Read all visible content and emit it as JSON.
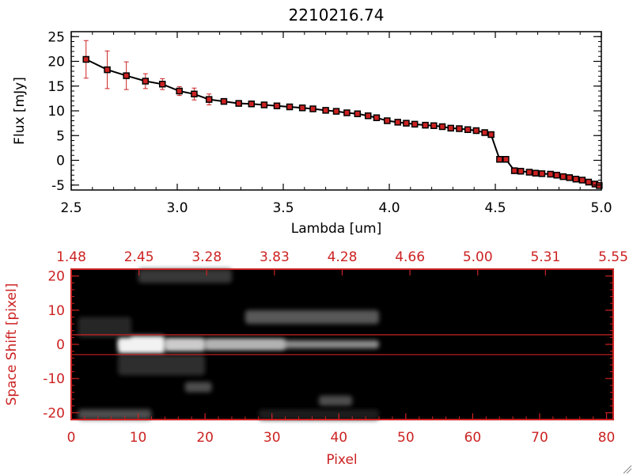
{
  "chart_data": [
    {
      "type": "line",
      "title": "2210216.74",
      "xlabel": "Lambda [um]",
      "ylabel": "Flux [mJy]",
      "xlim": [
        2.5,
        5.0
      ],
      "ylim": [
        -6,
        26
      ],
      "x_ticks": [
        "2.5",
        "3.0",
        "3.5",
        "4.0",
        "4.5",
        "5.0"
      ],
      "y_ticks": [
        "-5",
        "0",
        "5",
        "10",
        "15",
        "20",
        "25"
      ],
      "grid": false,
      "colors": {
        "line": "#000000",
        "marker": "#cc2222",
        "error": "#cc2222"
      },
      "series": [
        {
          "x": [
            2.57,
            2.67,
            2.76,
            2.85,
            2.93,
            3.01,
            3.08,
            3.15,
            3.22,
            3.29,
            3.35,
            3.41,
            3.47,
            3.53,
            3.59,
            3.64,
            3.7,
            3.75,
            3.8,
            3.85,
            3.9,
            3.94,
            3.99,
            4.04,
            4.08,
            4.12,
            4.17,
            4.21,
            4.25,
            4.29,
            4.33,
            4.37,
            4.41,
            4.45,
            4.48,
            4.52,
            4.55,
            4.59,
            4.62,
            4.66,
            4.69,
            4.72,
            4.76,
            4.79,
            4.82,
            4.85,
            4.88,
            4.91,
            4.94,
            4.97,
            4.99
          ],
          "y": [
            20.4,
            18.3,
            17.1,
            16.0,
            15.4,
            14.0,
            13.4,
            12.3,
            11.9,
            11.5,
            11.4,
            11.2,
            11.0,
            10.8,
            10.6,
            10.4,
            10.1,
            9.9,
            9.6,
            9.4,
            9.0,
            8.6,
            8.0,
            7.7,
            7.5,
            7.3,
            7.1,
            7.0,
            6.8,
            6.5,
            6.4,
            6.2,
            6.0,
            5.6,
            5.2,
            0.2,
            0.2,
            -2.1,
            -2.2,
            -2.4,
            -2.6,
            -2.7,
            -2.8,
            -3.0,
            -3.3,
            -3.5,
            -3.8,
            -4.0,
            -4.4,
            -4.8,
            -5.1
          ],
          "yerr": [
            3.8,
            3.8,
            2.8,
            1.5,
            1.1,
            0.9,
            1.2,
            1.1,
            0.4,
            0.3,
            0.3,
            0.3,
            0.3,
            0.3,
            0.3,
            0.3,
            0.3,
            0.3,
            0.3,
            0.3,
            0.3,
            0.3,
            0.3,
            0.3,
            0.3,
            0.3,
            0.3,
            0.3,
            0.3,
            0.3,
            0.3,
            0.3,
            0.3,
            0.3,
            0.3,
            0.3,
            0.3,
            0.3,
            0.3,
            0.3,
            0.3,
            0.3,
            0.3,
            0.3,
            0.3,
            0.3,
            0.3,
            0.3,
            0.3,
            0.3,
            0.3
          ]
        }
      ]
    },
    {
      "type": "heatmap",
      "xlabel": "Pixel",
      "ylabel": "Space Shift [pixel]",
      "xlim": [
        0,
        81
      ],
      "ylim": [
        -22,
        22
      ],
      "x_ticks": [
        "0",
        "10",
        "20",
        "30",
        "40",
        "50",
        "60",
        "70",
        "80"
      ],
      "y_ticks": [
        "-20",
        "-10",
        "0",
        "10",
        "20"
      ],
      "x2_ticks": [
        "1.48",
        "2.45",
        "3.28",
        "3.83",
        "4.28",
        "4.66",
        "5.00",
        "5.31",
        "5.55"
      ],
      "extraction_lines": [
        2.8,
        -3.0
      ],
      "colors": {
        "axes": "#cc2222",
        "background": "#000000",
        "lines": "#cc2222"
      },
      "features": [
        {
          "x0": 7,
          "x1": 46,
          "y0": -1.2,
          "y1": 1.2,
          "level": 0.55
        },
        {
          "x0": 7,
          "x1": 14,
          "y0": -2.8,
          "y1": 2.5,
          "level": 0.95
        },
        {
          "x0": 14,
          "x1": 20,
          "y0": -2.0,
          "y1": 1.8,
          "level": 0.8
        },
        {
          "x0": 20,
          "x1": 32,
          "y0": -1.6,
          "y1": 1.6,
          "level": 0.7
        },
        {
          "x0": 26,
          "x1": 46,
          "y0": 6.0,
          "y1": 10.0,
          "level": 0.35
        },
        {
          "x0": 10,
          "x1": 24,
          "y0": 18.0,
          "y1": 22.0,
          "level": 0.22
        },
        {
          "x0": 1,
          "x1": 12,
          "y0": -22.0,
          "y1": -19.0,
          "level": 0.3
        },
        {
          "x0": 17,
          "x1": 21,
          "y0": -14.0,
          "y1": -11.0,
          "level": 0.3
        },
        {
          "x0": 37,
          "x1": 42,
          "y0": -18.0,
          "y1": -15.0,
          "level": 0.3
        },
        {
          "x0": 7,
          "x1": 20,
          "y0": -9.0,
          "y1": -3.0,
          "level": 0.18
        },
        {
          "x0": 1,
          "x1": 9,
          "y0": 2.0,
          "y1": 8.0,
          "level": 0.15
        },
        {
          "x0": 28,
          "x1": 46,
          "y0": -22.0,
          "y1": -19.0,
          "level": 0.12
        }
      ]
    }
  ]
}
